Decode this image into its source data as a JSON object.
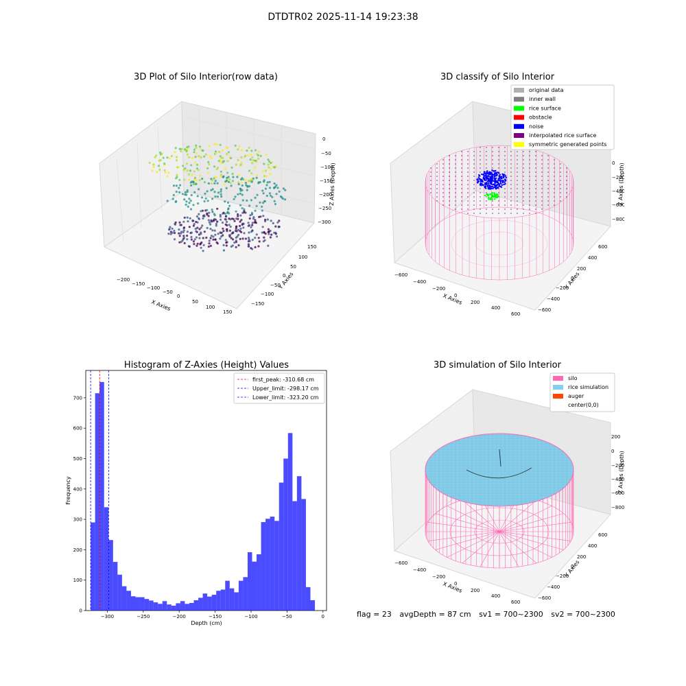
{
  "suptitle": "DTDTR02 2025-11-14 19:23:38",
  "panels": {
    "raw": {
      "title": "3D Plot of Silo Interior(row data)",
      "xlabel": "X Axies",
      "ylabel": "Y Axies",
      "zlabel": "Z Axies (Depth)",
      "xticks": [
        "−200",
        "−150",
        "−100",
        "−50",
        "0",
        "50",
        "100",
        "150"
      ],
      "yticks": [
        "150",
        "100",
        "50",
        "0",
        "−50",
        "−100",
        "−150"
      ],
      "zticks": [
        "0",
        "−50",
        "−100",
        "−150",
        "−200",
        "−250",
        "−300"
      ]
    },
    "classify": {
      "title": "3D classify of Silo Interior",
      "xlabel": "X Axies",
      "ylabel": "Y Axies",
      "zlabel": "Z Axies (Depth)",
      "xticks": [
        "−600",
        "−400",
        "−200",
        "0",
        "200",
        "400",
        "600"
      ],
      "yticks": [
        "600",
        "400",
        "200",
        "0",
        "−200",
        "−400",
        "−600"
      ],
      "zticks": [
        "0",
        "−200",
        "−400",
        "−600",
        "−800"
      ],
      "legend": [
        {
          "label": "original data",
          "color": "#b0b0b0"
        },
        {
          "label": "inner wall",
          "color": "#808080"
        },
        {
          "label": "rice surface",
          "color": "#00ff00"
        },
        {
          "label": "obstacle",
          "color": "#ff0000"
        },
        {
          "label": "noise",
          "color": "#0000ff"
        },
        {
          "label": "interpolated rice surface",
          "color": "#800080"
        },
        {
          "label": "symmetric generated points",
          "color": "#ffff00"
        }
      ]
    },
    "simulation": {
      "title": "3D simulation of Silo Interior",
      "xlabel": "X Axies",
      "ylabel": "Y Axies",
      "zlabel": "Z Axies (Depth)",
      "xticks": [
        "−600",
        "−400",
        "−200",
        "0",
        "200",
        "400",
        "600"
      ],
      "yticks": [
        "600",
        "400",
        "200",
        "0",
        "−200",
        "−400",
        "−600"
      ],
      "zticks": [
        "200",
        "0",
        "−200",
        "−400",
        "−600",
        "−800"
      ],
      "legend": [
        {
          "label": "silo",
          "color": "#ff69b4"
        },
        {
          "label": "rice simulation",
          "color": "#87ceeb"
        },
        {
          "label": "auger",
          "color": "#ff4500"
        },
        {
          "label": "center(0,0)",
          "color": "#ffffff"
        }
      ]
    }
  },
  "chart_data": [
    {
      "type": "bar",
      "title": "Histogram of Z-Axies (Height) Values",
      "xlabel": "Depth (cm)",
      "ylabel": "Frequency",
      "xlim": [
        -330,
        5
      ],
      "ylim": [
        0,
        790
      ],
      "xticks": [
        "−300",
        "−250",
        "−200",
        "−150",
        "−100",
        "−50",
        "0"
      ],
      "xtick_values": [
        -300,
        -250,
        -200,
        -150,
        -100,
        -50,
        0
      ],
      "yticks": [
        "0",
        "100",
        "200",
        "300",
        "400",
        "500",
        "600",
        "700"
      ],
      "ytick_values": [
        0,
        100,
        200,
        300,
        400,
        500,
        600,
        700
      ],
      "bin_start": -323.2,
      "bin_width": 6.24,
      "counts": [
        290,
        715,
        752,
        340,
        232,
        160,
        118,
        80,
        65,
        47,
        44,
        44,
        38,
        33,
        27,
        22,
        31,
        20,
        16,
        24,
        31,
        22,
        25,
        34,
        42,
        56,
        46,
        52,
        65,
        69,
        98,
        73,
        60,
        98,
        110,
        192,
        161,
        185,
        291,
        302,
        309,
        295,
        421,
        500,
        584,
        360,
        442,
        367,
        77,
        34
      ],
      "bar_color": "#0000ff",
      "lines": [
        {
          "label": "first_peak: -310.68 cm",
          "x": -310.68,
          "color": "#ff0000"
        },
        {
          "label": "Upper_limit: -298.17 cm",
          "x": -298.17,
          "color": "#0000ff"
        },
        {
          "label": "Lower_limit: -323.20 cm",
          "x": -323.2,
          "color": "#0000ff"
        }
      ]
    }
  ],
  "status": {
    "flag": "flag = 23",
    "avg": "avgDepth = 87 cm",
    "sv1": "sv1 = 700~2300",
    "sv2": "sv2 = 700~2300"
  }
}
